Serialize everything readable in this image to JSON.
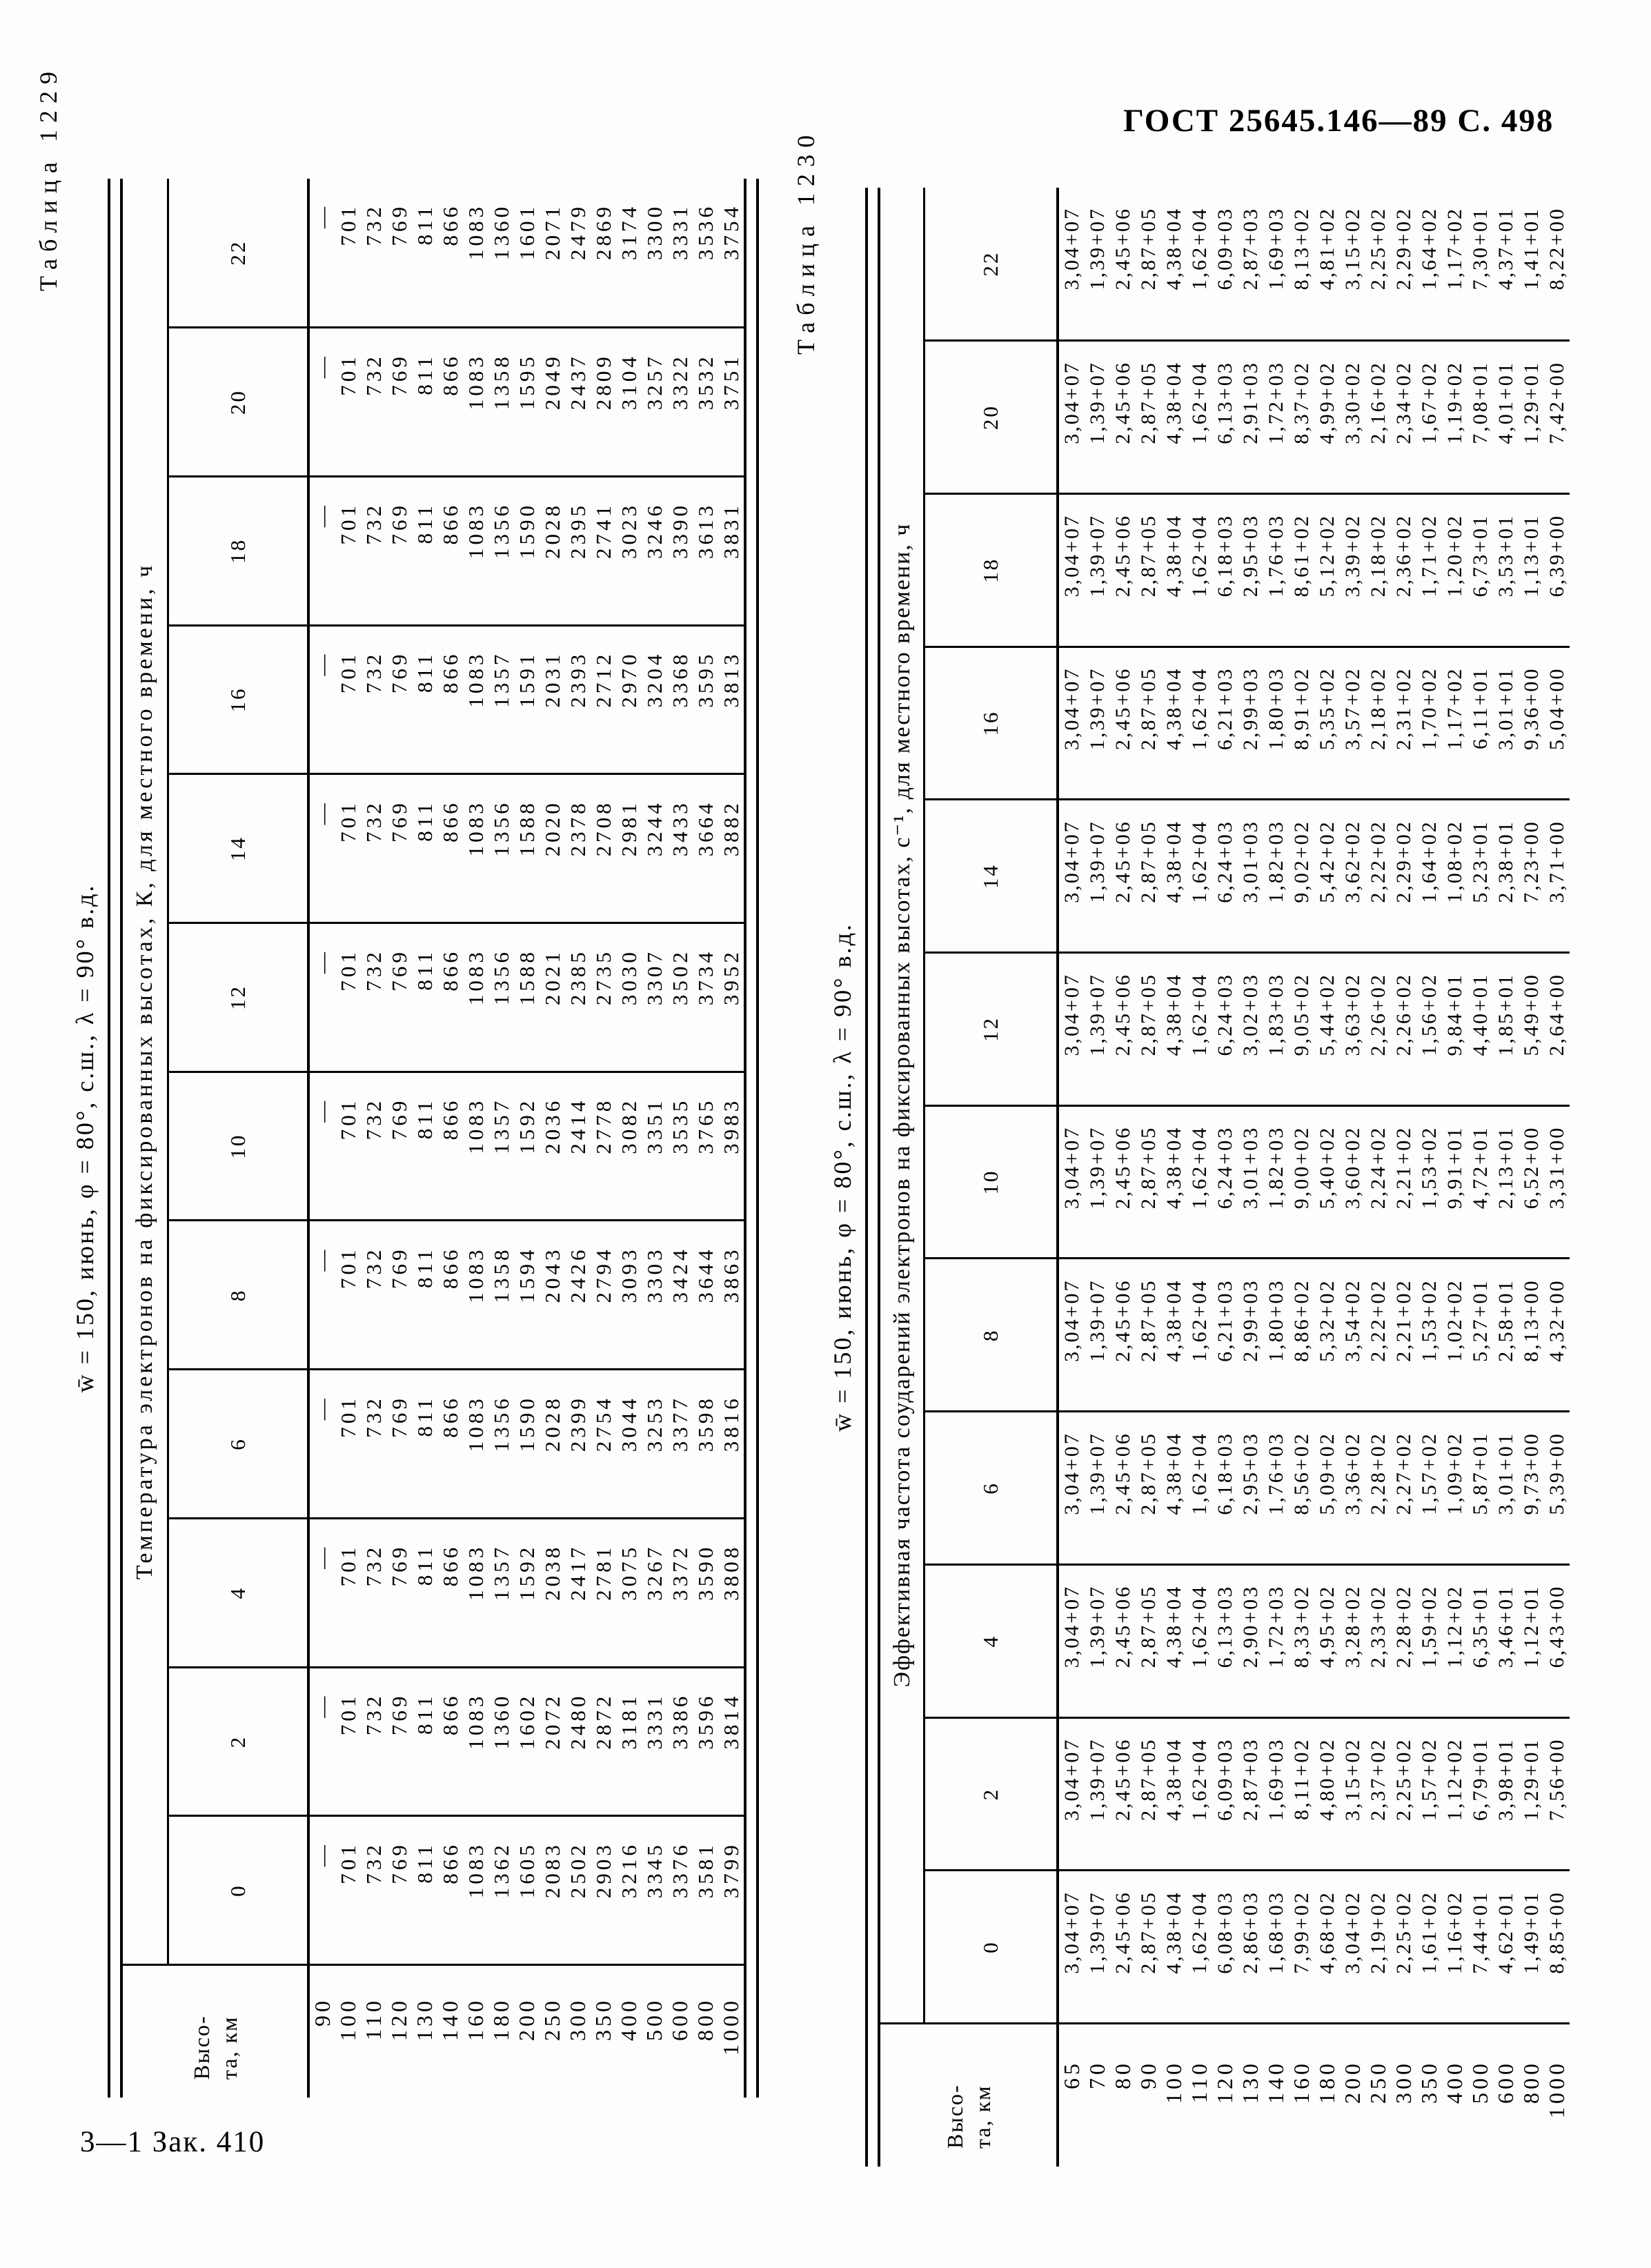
{
  "page": {
    "header_right": "ГОСТ 25645.146—89 С. 498",
    "footer_left": "3—1 Зак. 410"
  },
  "table1229": {
    "label": "Таблица 1229",
    "title": "w̄ = 150, июнь, φ = 80°, с.ш., λ = 90° в.д.",
    "corner_line1": "Высо-",
    "corner_line2": "та, км",
    "group_header": "Температура электронов на фиксированных высотах, К, для местного времени, ч",
    "hours": [
      "0",
      "2",
      "4",
      "6",
      "8",
      "10",
      "12",
      "14",
      "16",
      "18",
      "20",
      "22"
    ],
    "rows": [
      {
        "h": "90",
        "v": [
          "—",
          "—",
          "—",
          "—",
          "—",
          "—",
          "—",
          "—",
          "—",
          "—",
          "—",
          "—"
        ]
      },
      {
        "h": "100",
        "v": [
          "701",
          "701",
          "701",
          "701",
          "701",
          "701",
          "701",
          "701",
          "701",
          "701",
          "701",
          "701"
        ]
      },
      {
        "h": "110",
        "v": [
          "732",
          "732",
          "732",
          "732",
          "732",
          "732",
          "732",
          "732",
          "732",
          "732",
          "732",
          "732"
        ]
      },
      {
        "h": "120",
        "v": [
          "769",
          "769",
          "769",
          "769",
          "769",
          "769",
          "769",
          "769",
          "769",
          "769",
          "769",
          "769"
        ]
      },
      {
        "h": "130",
        "v": [
          "811",
          "811",
          "811",
          "811",
          "811",
          "811",
          "811",
          "811",
          "811",
          "811",
          "811",
          "811"
        ]
      },
      {
        "h": "140",
        "v": [
          "866",
          "866",
          "866",
          "866",
          "866",
          "866",
          "866",
          "866",
          "866",
          "866",
          "866",
          "866"
        ]
      },
      {
        "h": "160",
        "v": [
          "1083",
          "1083",
          "1083",
          "1083",
          "1083",
          "1083",
          "1083",
          "1083",
          "1083",
          "1083",
          "1083",
          "1083"
        ]
      },
      {
        "h": "180",
        "v": [
          "1362",
          "1360",
          "1357",
          "1356",
          "1358",
          "1357",
          "1356",
          "1356",
          "1357",
          "1356",
          "1358",
          "1360"
        ]
      },
      {
        "h": "200",
        "v": [
          "1605",
          "1602",
          "1592",
          "1590",
          "1594",
          "1592",
          "1588",
          "1588",
          "1591",
          "1590",
          "1595",
          "1601"
        ]
      },
      {
        "h": "250",
        "v": [
          "2083",
          "2072",
          "2038",
          "2028",
          "2043",
          "2036",
          "2021",
          "2020",
          "2031",
          "2028",
          "2049",
          "2071"
        ]
      },
      {
        "h": "300",
        "v": [
          "2502",
          "2480",
          "2417",
          "2399",
          "2426",
          "2414",
          "2385",
          "2378",
          "2393",
          "2395",
          "2437",
          "2479"
        ]
      },
      {
        "h": "350",
        "v": [
          "2903",
          "2872",
          "2781",
          "2754",
          "2794",
          "2778",
          "2735",
          "2708",
          "2712",
          "2741",
          "2809",
          "2869"
        ]
      },
      {
        "h": "400",
        "v": [
          "3216",
          "3181",
          "3075",
          "3044",
          "3093",
          "3082",
          "3030",
          "2981",
          "2970",
          "3023",
          "3104",
          "3174"
        ]
      },
      {
        "h": "500",
        "v": [
          "3345",
          "3331",
          "3267",
          "3253",
          "3303",
          "3351",
          "3307",
          "3244",
          "3204",
          "3246",
          "3257",
          "3300"
        ]
      },
      {
        "h": "600",
        "v": [
          "3376",
          "3386",
          "3372",
          "3377",
          "3424",
          "3535",
          "3502",
          "3433",
          "3368",
          "3390",
          "3322",
          "3331"
        ]
      },
      {
        "h": "800",
        "v": [
          "3581",
          "3596",
          "3590",
          "3598",
          "3644",
          "3765",
          "3734",
          "3664",
          "3595",
          "3613",
          "3532",
          "3536"
        ]
      },
      {
        "h": "1000",
        "v": [
          "3799",
          "3814",
          "3808",
          "3816",
          "3863",
          "3983",
          "3952",
          "3882",
          "3813",
          "3831",
          "3751",
          "3754"
        ]
      }
    ]
  },
  "table1230": {
    "label": "Таблица 1230",
    "title": "w̄ = 150, июнь, φ = 80°, с.ш., λ = 90° в.д.",
    "corner_line1": "Высо-",
    "corner_line2": "та, км",
    "group_header": "Эффективная частота соударений электронов на фиксированных высотах, с⁻¹, для местного времени, ч",
    "hours": [
      "0",
      "2",
      "4",
      "6",
      "8",
      "10",
      "12",
      "14",
      "16",
      "18",
      "20",
      "22"
    ],
    "rows": [
      {
        "h": "65",
        "v": [
          "3,04+07",
          "3,04+07",
          "3,04+07",
          "3,04+07",
          "3,04+07",
          "3,04+07",
          "3,04+07",
          "3,04+07",
          "3,04+07",
          "3,04+07",
          "3,04+07",
          "3,04+07"
        ]
      },
      {
        "h": "70",
        "v": [
          "1,39+07",
          "1,39+07",
          "1,39+07",
          "1,39+07",
          "1,39+07",
          "1,39+07",
          "1,39+07",
          "1,39+07",
          "1,39+07",
          "1,39+07",
          "1,39+07",
          "1,39+07"
        ]
      },
      {
        "h": "80",
        "v": [
          "2,45+06",
          "2,45+06",
          "2,45+06",
          "2,45+06",
          "2,45+06",
          "2,45+06",
          "2,45+06",
          "2,45+06",
          "2,45+06",
          "2,45+06",
          "2,45+06",
          "2,45+06"
        ]
      },
      {
        "h": "90",
        "v": [
          "2,87+05",
          "2,87+05",
          "2,87+05",
          "2,87+05",
          "2,87+05",
          "2,87+05",
          "2,87+05",
          "2,87+05",
          "2,87+05",
          "2,87+05",
          "2,87+05",
          "2,87+05"
        ]
      },
      {
        "h": "100",
        "v": [
          "4,38+04",
          "4,38+04",
          "4,38+04",
          "4,38+04",
          "4,38+04",
          "4,38+04",
          "4,38+04",
          "4,38+04",
          "4,38+04",
          "4,38+04",
          "4,38+04",
          "4,38+04"
        ]
      },
      {
        "h": "110",
        "v": [
          "1,62+04",
          "1,62+04",
          "1,62+04",
          "1,62+04",
          "1,62+04",
          "1,62+04",
          "1,62+04",
          "1,62+04",
          "1,62+04",
          "1,62+04",
          "1,62+04",
          "1,62+04"
        ]
      },
      {
        "h": "120",
        "v": [
          "6,08+03",
          "6,09+03",
          "6,13+03",
          "6,18+03",
          "6,21+03",
          "6,24+03",
          "6,24+03",
          "6,24+03",
          "6,21+03",
          "6,18+03",
          "6,13+03",
          "6,09+03"
        ]
      },
      {
        "h": "130",
        "v": [
          "2,86+03",
          "2,87+03",
          "2,90+03",
          "2,95+03",
          "2,99+03",
          "3,01+03",
          "3,02+03",
          "3,01+03",
          "2,99+03",
          "2,95+03",
          "2,91+03",
          "2,87+03"
        ]
      },
      {
        "h": "140",
        "v": [
          "1,68+03",
          "1,69+03",
          "1,72+03",
          "1,76+03",
          "1,80+03",
          "1,82+03",
          "1,83+03",
          "1,82+03",
          "1,80+03",
          "1,76+03",
          "1,72+03",
          "1,69+03"
        ]
      },
      {
        "h": "160",
        "v": [
          "7,99+02",
          "8,11+02",
          "8,33+02",
          "8,56+02",
          "8,86+02",
          "9,00+02",
          "9,05+02",
          "9,02+02",
          "8,91+02",
          "8,61+02",
          "8,37+02",
          "8,13+02"
        ]
      },
      {
        "h": "180",
        "v": [
          "4,68+02",
          "4,80+02",
          "4,95+02",
          "5,09+02",
          "5,32+02",
          "5,40+02",
          "5,44+02",
          "5,42+02",
          "5,35+02",
          "5,12+02",
          "4,99+02",
          "4,81+02"
        ]
      },
      {
        "h": "200",
        "v": [
          "3,04+02",
          "3,15+02",
          "3,28+02",
          "3,36+02",
          "3,54+02",
          "3,60+02",
          "3,63+02",
          "3,62+02",
          "3,57+02",
          "3,39+02",
          "3,30+02",
          "3,15+02"
        ]
      },
      {
        "h": "250",
        "v": [
          "2,19+02",
          "2,37+02",
          "2,33+02",
          "2,28+02",
          "2,22+02",
          "2,24+02",
          "2,26+02",
          "2,22+02",
          "2,18+02",
          "2,18+02",
          "2,16+02",
          "2,25+02"
        ]
      },
      {
        "h": "300",
        "v": [
          "2,25+02",
          "2,25+02",
          "2,28+02",
          "2,27+02",
          "2,21+02",
          "2,21+02",
          "2,26+02",
          "2,29+02",
          "2,31+02",
          "2,36+02",
          "2,34+02",
          "2,29+02"
        ]
      },
      {
        "h": "350",
        "v": [
          "1,61+02",
          "1,57+02",
          "1,59+02",
          "1,57+02",
          "1,53+02",
          "1,53+02",
          "1,56+02",
          "1,64+02",
          "1,70+02",
          "1,71+02",
          "1,67+02",
          "1,64+02"
        ]
      },
      {
        "h": "400",
        "v": [
          "1,16+02",
          "1,12+02",
          "1,12+02",
          "1,09+02",
          "1,02+02",
          "9,91+01",
          "9,84+01",
          "1,08+02",
          "1,17+02",
          "1,20+02",
          "1,19+02",
          "1,17+02"
        ]
      },
      {
        "h": "500",
        "v": [
          "7,44+01",
          "6,79+01",
          "6,35+01",
          "5,87+01",
          "5,27+01",
          "4,72+01",
          "4,40+01",
          "5,23+01",
          "6,11+01",
          "6,73+01",
          "7,08+01",
          "7,30+01"
        ]
      },
      {
        "h": "600",
        "v": [
          "4,62+01",
          "3,98+01",
          "3,46+01",
          "3,01+01",
          "2,58+01",
          "2,13+01",
          "1,85+01",
          "2,38+01",
          "3,01+01",
          "3,53+01",
          "4,01+01",
          "4,37+01"
        ]
      },
      {
        "h": "800",
        "v": [
          "1,49+01",
          "1,29+01",
          "1,12+01",
          "9,73+00",
          "8,13+00",
          "6,52+00",
          "5,49+00",
          "7,23+00",
          "9,36+00",
          "1,13+01",
          "1,29+01",
          "1,41+01"
        ]
      },
      {
        "h": "1000",
        "v": [
          "8,85+00",
          "7,56+00",
          "6,43+00",
          "5,39+00",
          "4,32+00",
          "3,31+00",
          "2,64+00",
          "3,71+00",
          "5,04+00",
          "6,39+00",
          "7,42+00",
          "8,22+00"
        ]
      }
    ]
  }
}
